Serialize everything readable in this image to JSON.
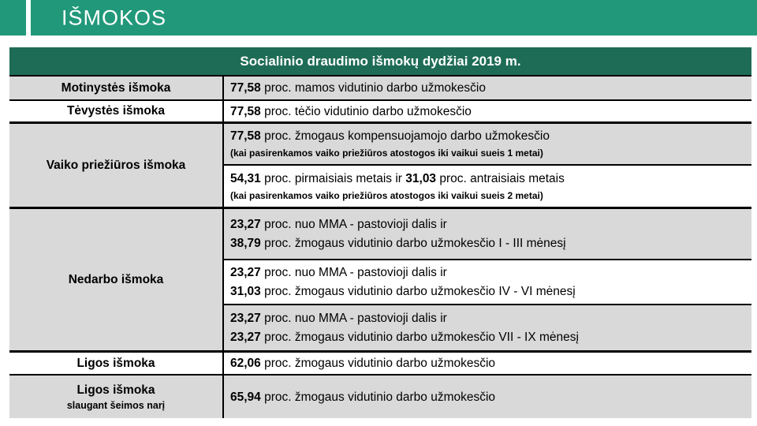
{
  "top_bar": {
    "title": "IŠMOKOS"
  },
  "colors": {
    "top_bar_green": "#21987A",
    "table_header_green": "#1E6C55",
    "row_gray": "#D9D9D9",
    "border_black": "#000000",
    "text_white": "#FFFFFF"
  },
  "table": {
    "header_title": "Socialinio draudimo išmokų dydžiai 2019 m.",
    "rows": {
      "motinystes": {
        "label": "Motinystės išmoka",
        "n1": "77,58",
        "t1": " proc. mamos vidutinio darbo užmokesčio"
      },
      "tevystes": {
        "label": "Tėvystės išmoka",
        "n1": "77,58",
        "t1": " proc. tėčio vidutinio darbo užmokesčio"
      },
      "vaiko": {
        "label": "Vaiko priežiūros išmoka",
        "opt1": {
          "n1": "77,58",
          "t1": " proc. žmogaus kompensuojamojo darbo užmokesčio",
          "note": "(kai pasirenkamos vaiko priežiūros atostogos iki vaikui sueis 1 metai)"
        },
        "opt2": {
          "n1": "54,31",
          "t1": " proc. pirmaisiais metais ir ",
          "n2": "31,03",
          "t2": " proc. antraisiais metais",
          "note": "(kai pasirenkamos vaiko priežiūros atostogos iki vaikui sueis 2 metai)"
        }
      },
      "nedarbo": {
        "label": "Nedarbo išmoka",
        "p1": {
          "l1n": "23,27",
          "l1t": " proc. nuo MMA - pastovioji dalis ir",
          "l2n": "38,79",
          "l2t": " proc. žmogaus vidutinio darbo užmokesčio I - III mėnesį"
        },
        "p2": {
          "l1n": "23,27",
          "l1t": " proc. nuo MMA - pastovioji dalis ir",
          "l2n": "31,03",
          "l2t": " proc. žmogaus vidutinio darbo užmokesčio IV - VI mėnesį"
        },
        "p3": {
          "l1n": "23,27",
          "l1t": " proc. nuo MMA - pastovioji dalis ir",
          "l2n": "23,27",
          "l2t": " proc. žmogaus vidutinio darbo užmokesčio VII - IX mėnesį"
        }
      },
      "ligos": {
        "label": "Ligos išmoka",
        "n1": "62,06",
        "t1": " proc. žmogaus vidutinio darbo užmokesčio"
      },
      "ligos_slaugant": {
        "label_line1": "Ligos išmoka",
        "label_line2": "slaugant šeimos narį",
        "n1": "65,94",
        "t1": " proc. žmogaus vidutinio darbo užmokesčio"
      }
    }
  }
}
